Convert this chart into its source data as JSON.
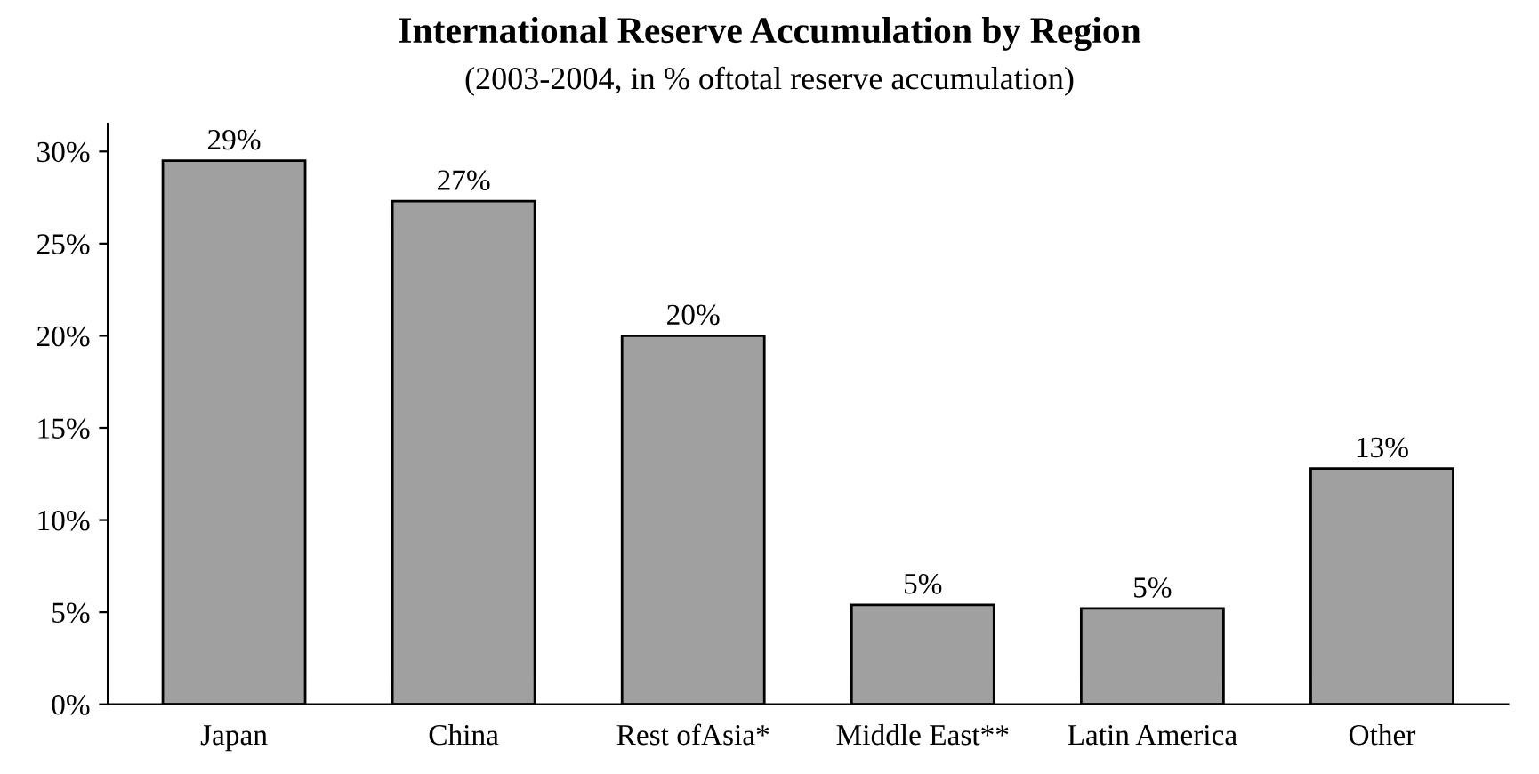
{
  "chart_data": {
    "type": "bar",
    "title": "International Reserve Accumulation by Region",
    "subtitle": "(2003-2004, in % oftotal reserve accumulation)",
    "categories": [
      "Japan",
      "China",
      "Rest ofAsia*",
      "Middle East**",
      "Latin America",
      "Other"
    ],
    "values": [
      29.5,
      27.3,
      20.0,
      5.4,
      5.2,
      12.8
    ],
    "value_labels": [
      "29%",
      "27%",
      "20%",
      "5%",
      "5%",
      "13%"
    ],
    "color": "#a0a0a0",
    "ylim": [
      0,
      31.5
    ],
    "yticks": [
      {
        "value": 0,
        "label": "0%"
      },
      {
        "value": 5,
        "label": "5%"
      },
      {
        "value": 10,
        "label": "10%"
      },
      {
        "value": 15,
        "label": "15%"
      },
      {
        "value": 20,
        "label": "20%"
      },
      {
        "value": 25,
        "label": "25%"
      },
      {
        "value": 30,
        "label": "30%"
      }
    ],
    "grid": false,
    "legend": false
  }
}
